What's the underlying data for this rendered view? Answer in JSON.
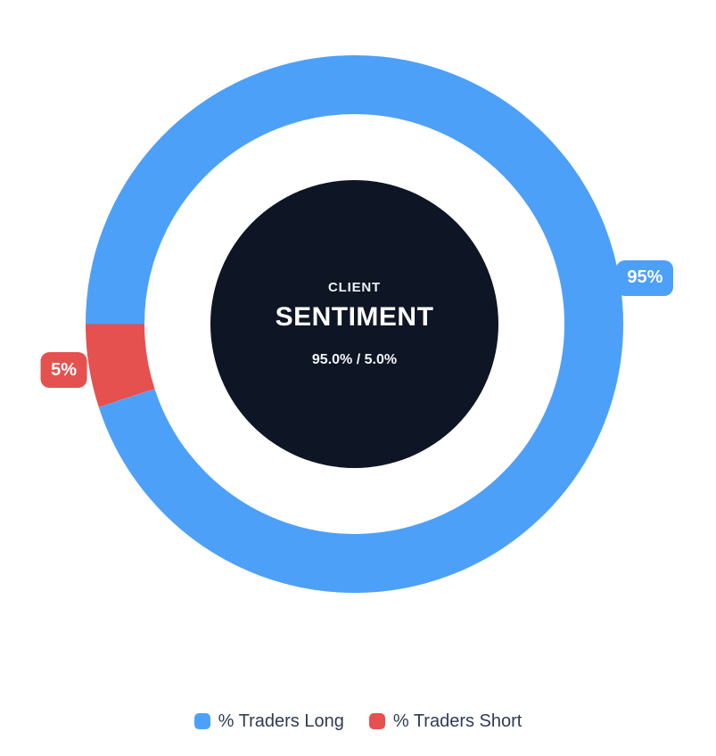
{
  "chart_data": {
    "type": "pie",
    "variant": "donut",
    "start_angle_deg": 180,
    "direction": "clockwise",
    "total": 100,
    "segments": [
      {
        "id": "traders-long",
        "label": "% Traders Long",
        "value": 95,
        "badge": "95%",
        "color": "#4DA0F8"
      },
      {
        "id": "traders-short",
        "label": "% Traders Short",
        "value": 5,
        "badge": "5%",
        "color": "#E5514F"
      }
    ],
    "center_label": {
      "top": "CLIENT",
      "main": "SENTIMENT",
      "sub": "95.0% / 5.0%"
    },
    "legend": {
      "position": "bottom"
    },
    "colors": {
      "center_fill": "#0E1524",
      "center_text": "#FFFFFF",
      "legend_text": "#2F3B54",
      "background": "#FFFFFF"
    }
  }
}
